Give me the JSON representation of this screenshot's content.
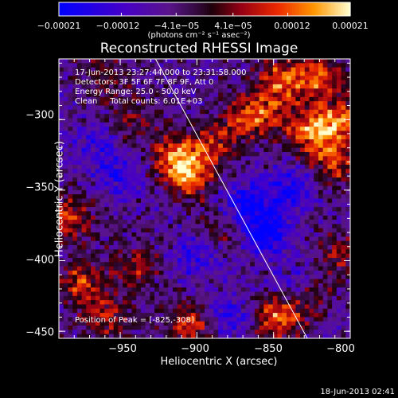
{
  "chart_data": {
    "type": "heatmap",
    "title": "Reconstructed RHESSI Image",
    "xlabel": "Heliocentric X (arcsec)",
    "ylabel": "Heliocentric Y (arcsec)",
    "xlim": [
      -990,
      -800
    ],
    "ylim": [
      -455,
      -257
    ],
    "x_ticks": [
      -950,
      -900,
      -850,
      -800
    ],
    "y_ticks": [
      -450,
      -400,
      -350,
      -300
    ],
    "x_tick_labels": [
      "−950",
      "−900",
      "−850",
      "−800"
    ],
    "y_tick_labels": [
      "−450",
      "−400",
      "−350",
      "−300"
    ],
    "colorbar": {
      "range": [
        -0.00021,
        0.00021
      ],
      "tick_labels": [
        "−0.00021",
        "−0.00012",
        "−4.1e−05",
        "4.1e−05",
        "0.00012",
        "0.00021"
      ],
      "unit": "(photons cm⁻² s⁻¹ asec⁻²)"
    },
    "annotations": {
      "time_range": "17-Jun-2013 23:27:44.000 to 23:31:58.000",
      "detectors": "Detectors: 3F 5F 6F 7F 8F 9F, Att 0",
      "energy": "Energy Range: 25.0 - 50.0 keV",
      "clean": "Clean     Total counts: 6.01E+03",
      "peak": "Position of Peak = [-825,-308]"
    },
    "peak_position": [
      -825,
      -308
    ],
    "limb_line": [
      [
        -927,
        -257
      ],
      [
        -828,
        -455
      ]
    ],
    "bright_regions": [
      {
        "x": -905,
        "y": -340,
        "level": 0.95
      },
      {
        "x": -915,
        "y": -325,
        "level": 0.75
      },
      {
        "x": -890,
        "y": -318,
        "level": 0.55
      },
      {
        "x": -845,
        "y": -272,
        "level": 0.75
      },
      {
        "x": -820,
        "y": -270,
        "level": 0.8
      },
      {
        "x": -805,
        "y": -300,
        "level": 0.8
      },
      {
        "x": -825,
        "y": -308,
        "level": 0.95
      },
      {
        "x": -810,
        "y": -330,
        "level": 0.7
      },
      {
        "x": -870,
        "y": -300,
        "level": 0.55
      },
      {
        "x": -855,
        "y": -295,
        "level": 0.6
      },
      {
        "x": -848,
        "y": -440,
        "level": 0.9
      },
      {
        "x": -830,
        "y": -425,
        "level": 0.65
      },
      {
        "x": -985,
        "y": -370,
        "level": 0.7
      },
      {
        "x": -975,
        "y": -415,
        "level": 0.65
      },
      {
        "x": -960,
        "y": -440,
        "level": 0.6
      },
      {
        "x": -905,
        "y": -445,
        "level": 0.75
      },
      {
        "x": -945,
        "y": -300,
        "level": 0.45
      },
      {
        "x": -940,
        "y": -405,
        "level": 0.5
      },
      {
        "x": -885,
        "y": -380,
        "level": 0.4
      },
      {
        "x": -960,
        "y": -270,
        "level": 0.4
      },
      {
        "x": -808,
        "y": -395,
        "level": 0.45
      }
    ],
    "dark_regions": [
      {
        "x": -855,
        "y": -380,
        "level": -0.8
      },
      {
        "x": -870,
        "y": -360,
        "level": -0.6
      },
      {
        "x": -840,
        "y": -350,
        "level": -0.6
      },
      {
        "x": -900,
        "y": -395,
        "level": -0.5
      },
      {
        "x": -835,
        "y": -420,
        "level": -0.6
      },
      {
        "x": -950,
        "y": -340,
        "level": -0.45
      },
      {
        "x": -965,
        "y": -315,
        "level": -0.4
      },
      {
        "x": -880,
        "y": -440,
        "level": -0.5
      }
    ]
  },
  "footer": {
    "timestamp": "18-Jun-2013 02:41"
  }
}
